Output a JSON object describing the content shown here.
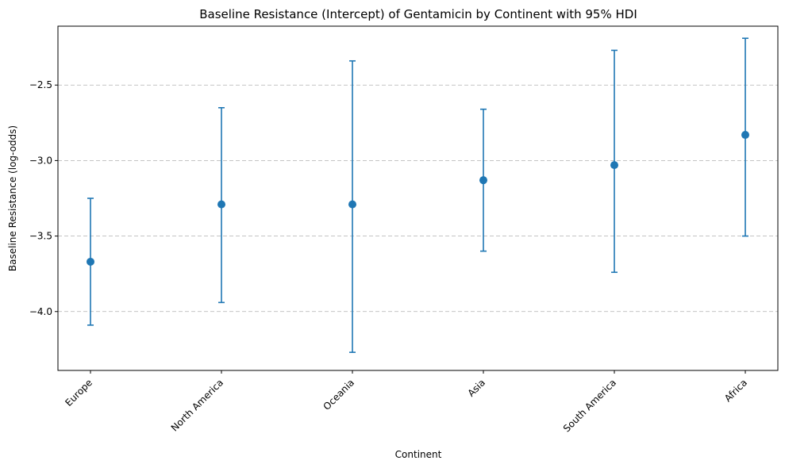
{
  "chart_data": {
    "type": "errorbar",
    "title": "Baseline Resistance (Intercept) of Gentamicin by Continent with 95% HDI",
    "xlabel": "Continent",
    "ylabel": "Baseline Resistance (log-odds)",
    "categories": [
      "Europe",
      "North America",
      "Oceania",
      "Asia",
      "South America",
      "Africa"
    ],
    "series": [
      {
        "values": [
          -3.67,
          -3.29,
          -3.29,
          -3.13,
          -3.03,
          -2.83
        ],
        "lower": [
          -4.09,
          -3.94,
          -4.27,
          -3.6,
          -3.74,
          -3.5
        ],
        "upper": [
          -3.25,
          -2.65,
          -2.34,
          -2.66,
          -2.27,
          -2.19
        ]
      }
    ],
    "yticks": [
      -4.0,
      -3.5,
      -3.0,
      -2.5
    ],
    "ylim": [
      -4.39,
      -2.11
    ],
    "grid": "y-dashed",
    "color": "#1f77b4"
  }
}
